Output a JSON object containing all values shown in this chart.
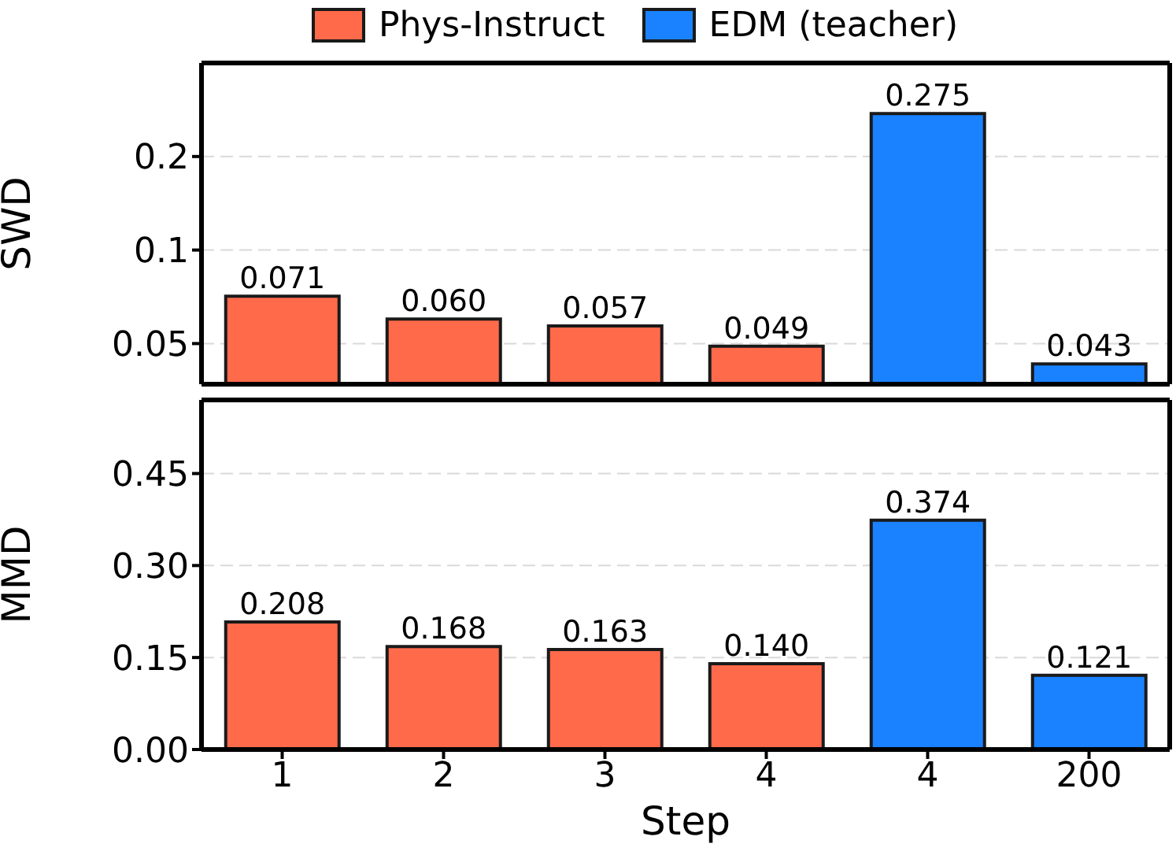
{
  "chart_data": [
    {
      "type": "bar",
      "ylabel": "SWD",
      "categories": [
        "1",
        "2",
        "3",
        "4",
        "4",
        "200"
      ],
      "log": "y",
      "ylim": [
        0.037,
        0.4
      ],
      "yticks": [
        0.05,
        0.1,
        0.2
      ],
      "grid": "y",
      "legend": "top",
      "tick_labels": "y",
      "series": [
        {
          "name": "Phys-Instruct",
          "color": "#ff6a4a",
          "values": [
            0.071,
            0.06,
            0.057,
            0.049,
            null,
            null
          ],
          "value_labels": [
            "0.071",
            "0.060",
            "0.057",
            "0.049",
            null,
            null
          ]
        },
        {
          "name": "EDM (teacher)",
          "color": "#1a82ff",
          "values": [
            null,
            null,
            null,
            null,
            0.275,
            0.043
          ],
          "value_labels": [
            null,
            null,
            null,
            null,
            "0.275",
            "0.043"
          ]
        }
      ]
    },
    {
      "type": "bar",
      "ylabel": "MMD",
      "xlabel": "Step",
      "categories": [
        "1",
        "2",
        "3",
        "4",
        "4",
        "200"
      ],
      "ylim": [
        0,
        0.57
      ],
      "yticks": [
        {
          "value": 0,
          "label": "0.00"
        },
        {
          "value": 0.15,
          "label": "0.15"
        },
        {
          "value": 0.3,
          "label": "0.30"
        },
        {
          "value": 0.45,
          "label": "0.45"
        }
      ],
      "grid": "y",
      "series": [
        {
          "color": "#ff6a4a",
          "values": [
            0.208,
            0.168,
            0.163,
            0.14,
            null,
            null
          ],
          "value_labels": [
            "0.208",
            "0.168",
            "0.163",
            "0.140",
            null,
            null
          ]
        },
        {
          "color": "#1a82ff",
          "values": [
            null,
            null,
            null,
            null,
            0.374,
            0.121
          ],
          "value_labels": [
            null,
            null,
            null,
            null,
            "0.374",
            "0.121"
          ]
        }
      ]
    }
  ]
}
